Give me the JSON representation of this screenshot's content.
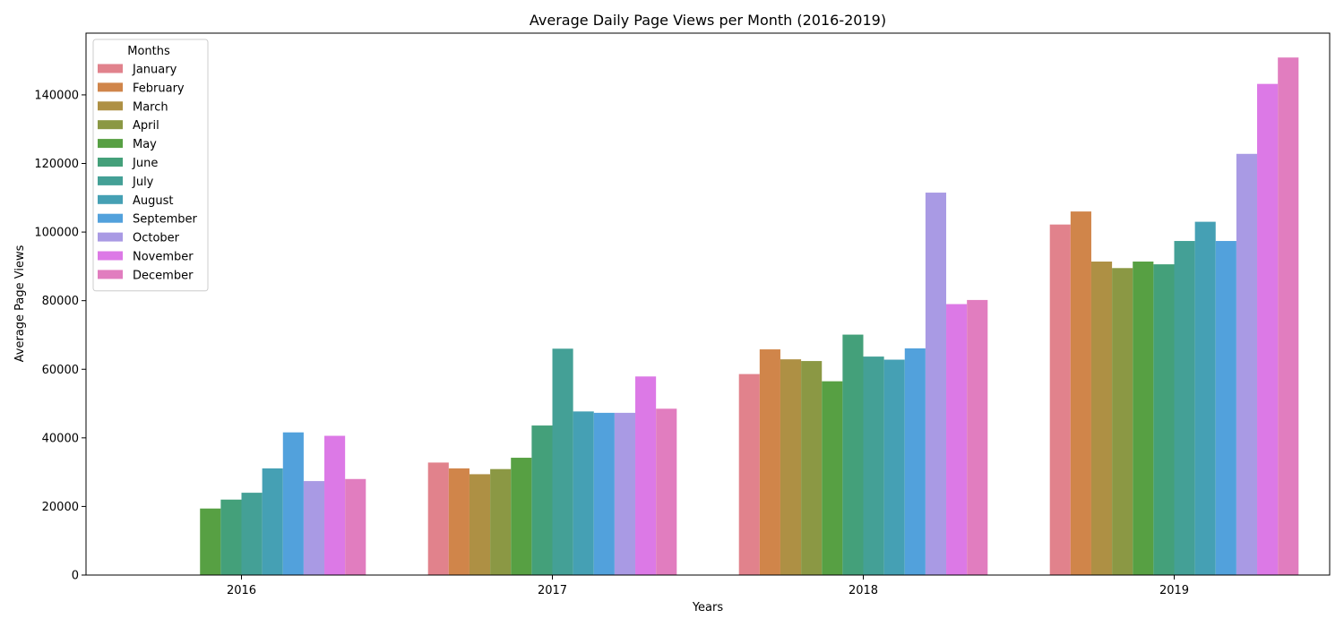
{
  "chart_data": {
    "type": "bar",
    "title": "Average Daily Page Views per Month (2016-2019)",
    "xlabel": "Years",
    "ylabel": "Average Page Views",
    "categories": [
      "2016",
      "2017",
      "2018",
      "2019"
    ],
    "ylim": [
      0,
      158000
    ],
    "yticks": [
      0,
      20000,
      40000,
      60000,
      80000,
      100000,
      120000,
      140000
    ],
    "ytick_labels": [
      "0",
      "20000",
      "40000",
      "60000",
      "80000",
      "100000",
      "120000",
      "140000"
    ],
    "grid": false,
    "legend": {
      "title": "Months",
      "placement": "top-left"
    },
    "series": [
      {
        "name": "January",
        "color": "#e1828c",
        "values": [
          null,
          32800,
          58600,
          102200
        ]
      },
      {
        "name": "February",
        "color": "#d0854a",
        "values": [
          null,
          31100,
          65800,
          106000
        ]
      },
      {
        "name": "March",
        "color": "#ae9044",
        "values": [
          null,
          29400,
          62900,
          91400
        ]
      },
      {
        "name": "April",
        "color": "#8b9844",
        "values": [
          null,
          30900,
          62400,
          89500
        ]
      },
      {
        "name": "May",
        "color": "#57a043",
        "values": [
          19400,
          34200,
          56500,
          91400
        ]
      },
      {
        "name": "June",
        "color": "#44a07a",
        "values": [
          22000,
          43600,
          70100,
          90600
        ]
      },
      {
        "name": "July",
        "color": "#44a096",
        "values": [
          24000,
          66000,
          63700,
          97400
        ]
      },
      {
        "name": "August",
        "color": "#45a0b4",
        "values": [
          31100,
          47700,
          62800,
          103000
        ]
      },
      {
        "name": "September",
        "color": "#52a1dc",
        "values": [
          41600,
          47300,
          66100,
          97400
        ]
      },
      {
        "name": "October",
        "color": "#a99ae4",
        "values": [
          27400,
          47300,
          111500,
          122800
        ]
      },
      {
        "name": "November",
        "color": "#dc79e6",
        "values": [
          40600,
          57900,
          79000,
          143200
        ]
      },
      {
        "name": "December",
        "color": "#e17dbf",
        "values": [
          28000,
          48500,
          80200,
          150900
        ]
      }
    ]
  }
}
